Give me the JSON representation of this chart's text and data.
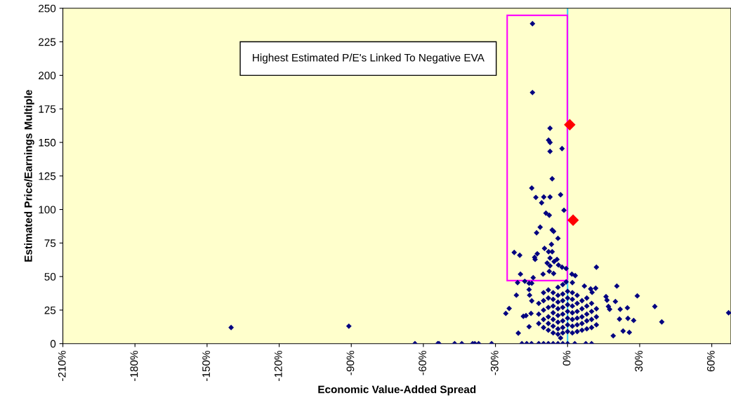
{
  "chart_data": {
    "type": "scatter",
    "xlabel": "Economic Value-Added Spread",
    "ylabel": "Estimated Price/Earnings Multiple",
    "annotations": [
      "Highest Estimated P/E's Linked To Negative EVA"
    ],
    "xlim": [
      -210,
      68
    ],
    "ylim": [
      0,
      250
    ],
    "xticks": [
      {
        "value": -210,
        "label": "-210%"
      },
      {
        "value": -180,
        "label": "-180%"
      },
      {
        "value": -150,
        "label": "-150%"
      },
      {
        "value": -120,
        "label": "-120%"
      },
      {
        "value": -90,
        "label": "-90%"
      },
      {
        "value": -60,
        "label": "-60%"
      },
      {
        "value": -30,
        "label": "-30%"
      },
      {
        "value": 0,
        "label": "0%"
      },
      {
        "value": 30,
        "label": "30%"
      },
      {
        "value": 60,
        "label": "60%"
      }
    ],
    "yticks": [
      0,
      25,
      50,
      75,
      100,
      125,
      150,
      175,
      200,
      225,
      250
    ],
    "grid": false,
    "legend": false,
    "marker": "diamond",
    "ref_lines": [
      {
        "axis": "x",
        "value": 0,
        "color": "#33ccff"
      }
    ],
    "series": [
      {
        "color": "#000080",
        "x": [
          -140,
          -91,
          67,
          -63.5,
          -54,
          -53.5,
          -47,
          -44,
          -39.5,
          -38.6,
          -37,
          -31.6,
          -19,
          -17,
          -15,
          -12,
          -10,
          -8,
          -6,
          -4,
          -2,
          0,
          3,
          7.6,
          10,
          -14.6,
          -14.6,
          -7.3,
          -7.9,
          -7.3,
          -7.3,
          -2.3,
          -6.4,
          -14.9,
          -13.2,
          -9.9,
          -7.3,
          -2.9,
          -10.8,
          -1.5,
          -9,
          -7.6,
          -11.4,
          -12.9,
          -6.4,
          -5.8,
          -4,
          -6.7,
          -22.2,
          -19.9,
          -9.6,
          -7.9,
          -6.4,
          -12.6,
          -13.7,
          -13.5,
          -7.3,
          -5.6,
          -4.4,
          -8.5,
          -7.3,
          -3.8,
          -2.3,
          -0.6,
          -19.6,
          -14.3,
          -10.2,
          -7.6,
          -5.8,
          1.8,
          3.2,
          12,
          -20.8,
          -17.8,
          -16,
          -14.9,
          2,
          -0.6,
          7,
          9.6,
          11.7,
          20.5,
          10.2,
          -16,
          -21.3,
          -15.8,
          16,
          16.4,
          19.9,
          29,
          -24.3,
          -25.7,
          -14.9,
          17,
          17.5,
          21.9,
          24.9,
          36.3,
          -18.4,
          -17.3,
          -15.2,
          25.1,
          27.5,
          39.2,
          21.6,
          -16,
          -20.5,
          -2.9,
          19,
          23.1,
          25.7,
          -12,
          -12,
          -12,
          -10,
          -10,
          -10,
          -10,
          -10,
          -8,
          -8,
          -8,
          -8,
          -8,
          -8,
          -6,
          -6,
          -6,
          -6,
          -6,
          -6,
          -6,
          -4,
          -4,
          -4,
          -4,
          -4,
          -4,
          -4,
          -4,
          -2,
          -2,
          -2,
          -2,
          -2,
          -2,
          -2,
          -2,
          0,
          0,
          0,
          0,
          0,
          0,
          0,
          2,
          2,
          2,
          2,
          2,
          2,
          2,
          4,
          4,
          4,
          4,
          4,
          4,
          6,
          6,
          6,
          6,
          6,
          8,
          8,
          8,
          8,
          8,
          10,
          10,
          10,
          10,
          12,
          12,
          12
        ],
        "values": [
          12,
          13,
          23,
          0,
          0,
          0,
          0,
          0,
          0,
          0,
          0,
          0,
          0,
          0,
          0,
          0,
          0,
          0,
          0,
          0,
          0,
          0,
          0,
          0,
          0,
          238.5,
          187.2,
          160.6,
          151.7,
          150,
          143.3,
          145.4,
          122.9,
          116,
          109,
          109.3,
          109.3,
          111,
          105,
          99.4,
          97.3,
          95.7,
          86.8,
          82.6,
          84.7,
          83.7,
          78.5,
          74,
          68,
          65.9,
          71,
          68.5,
          68.5,
          67,
          64.3,
          62.8,
          63.8,
          61.2,
          62.8,
          60.1,
          58,
          58.6,
          57,
          56,
          51.8,
          49.2,
          51.8,
          53.9,
          52.3,
          51.8,
          50.7,
          57,
          45.5,
          46.5,
          45,
          45,
          45.5,
          46,
          42.9,
          40.8,
          41.3,
          42.9,
          38.2,
          40.3,
          36.1,
          36.1,
          35,
          32.4,
          31.4,
          35.6,
          26.2,
          22.5,
          31.9,
          27.7,
          25.6,
          25.6,
          26.7,
          27.7,
          20.4,
          20.9,
          22.5,
          18.8,
          17.3,
          16.2,
          18.3,
          12.6,
          7.8,
          4.2,
          5.8,
          9.4,
          8.4,
          15,
          22,
          30,
          12,
          18,
          25,
          32,
          38,
          10,
          15,
          20,
          27,
          34,
          40,
          8,
          13,
          18,
          23,
          28,
          33,
          38,
          7,
          11,
          16,
          21,
          26,
          31,
          36,
          42,
          8,
          12,
          17,
          22,
          27,
          32,
          37,
          44,
          9,
          14,
          19,
          24,
          29,
          34,
          39,
          8,
          13,
          18,
          23,
          28,
          33,
          38,
          9,
          14,
          19,
          24,
          30,
          36,
          10,
          15,
          20,
          26,
          32,
          11,
          17,
          22,
          28,
          34,
          12,
          18,
          24,
          30,
          14,
          20,
          26
        ]
      },
      {
        "color": "#ff0000",
        "x": [
          0.9,
          2.3
        ],
        "values": [
          163.2,
          92
        ]
      }
    ]
  }
}
